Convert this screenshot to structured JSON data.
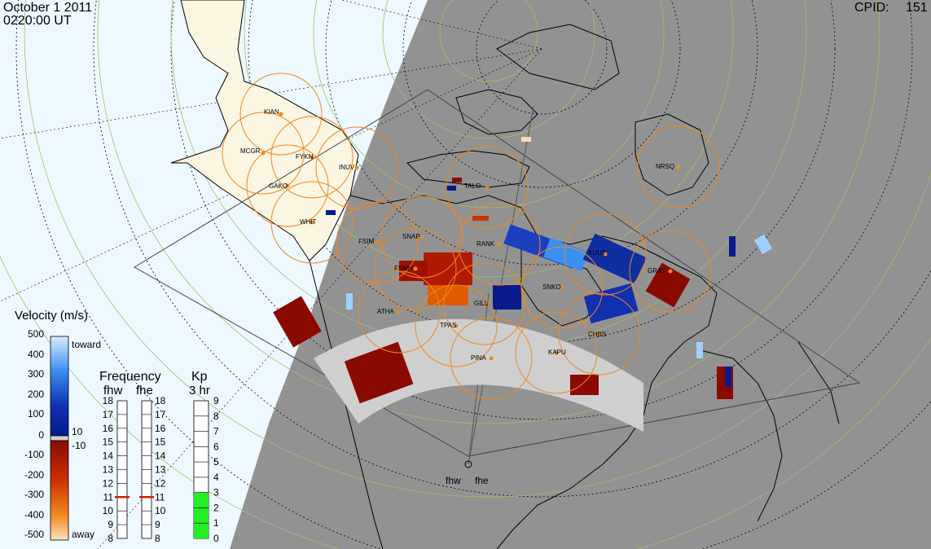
{
  "header": {
    "date": "October  1 2011",
    "time": "0220:00 UT",
    "cpid_label": "CPID:",
    "cpid_value": "151"
  },
  "stations": [
    "KIAN",
    "MCGR",
    "FYKN",
    "GAKO",
    "INUV",
    "WHIT",
    "FSIM",
    "SNAP",
    "TALO",
    "RANK",
    "KUUJ",
    "NRSQ",
    "GRAY",
    "FSMH",
    "SNKO",
    "ATHA",
    "GILL",
    "TPAS",
    "CHBS",
    "PINA",
    "KAPU"
  ],
  "radars": {
    "left": "fhw",
    "right": "fhe"
  },
  "velocity_scale": {
    "title": "Velocity (m/s)",
    "ticks": [
      "500",
      "400",
      "300",
      "200",
      "100",
      "0",
      "-100",
      "-200",
      "-300",
      "-400",
      "-500"
    ],
    "toward_label": "toward",
    "away_label": "away",
    "threshold_pos": "10",
    "threshold_neg": "-10"
  },
  "frequency_panel": {
    "title": "Frequency",
    "radar_left": "fhw",
    "radar_right": "fhe",
    "ticks": [
      "18",
      "17",
      "16",
      "15",
      "14",
      "13",
      "12",
      "11",
      "10",
      "9",
      "8"
    ],
    "left_value_mhz": 11,
    "right_value_mhz": 11,
    "marker_color": "#cc2200"
  },
  "kp_panel": {
    "title": "Kp",
    "subtitle": "3 hr",
    "ticks": [
      "9",
      "8",
      "7",
      "6",
      "5",
      "4",
      "3",
      "2",
      "1",
      "0"
    ],
    "value": 3,
    "bar_color": "#22ee22"
  },
  "colors": {
    "day_side": "#eef8ff",
    "night_side": "#929292",
    "land_day": "#fbf6e2",
    "range_ring": "#ee8822",
    "ground_scatter": "#cfcfcf",
    "toward_light": "#9fd0ff",
    "toward_dark": "#0a1a8a",
    "away_dark": "#8a0a00",
    "away_light": "#ffd9b0"
  }
}
